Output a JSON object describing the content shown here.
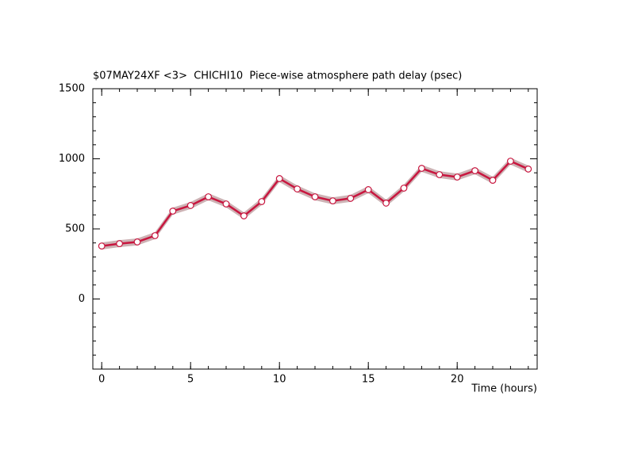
{
  "chart_data": {
    "type": "line",
    "title": "$07MAY24XF <3>  CHICHI10  Piece-wise atmosphere path delay (psec)",
    "x_label": "Time (hours)",
    "x": [
      0,
      1,
      2,
      3,
      4,
      5,
      6,
      7,
      8,
      9,
      10,
      11,
      12,
      13,
      14,
      15,
      16,
      17,
      18,
      19,
      20,
      21,
      22,
      23,
      24
    ],
    "series": [
      {
        "color": "#c8163f",
        "band_color": "#cdb3b5",
        "values": [
          378,
          395,
          407,
          452,
          627,
          667,
          729,
          678,
          593,
          695,
          859,
          785,
          729,
          700,
          718,
          780,
          684,
          791,
          932,
          887,
          870,
          915,
          847,
          983,
          927
        ],
        "errors": [
          25,
          25,
          25,
          25,
          25,
          25,
          25,
          25,
          25,
          25,
          25,
          25,
          25,
          25,
          25,
          25,
          25,
          25,
          25,
          25,
          25,
          25,
          25,
          25,
          25
        ]
      }
    ],
    "xlim": [
      -0.5,
      24.5
    ],
    "xticks": [
      0,
      5,
      10,
      15,
      20
    ],
    "xminorticks": [
      0,
      1,
      2,
      3,
      4,
      5,
      6,
      7,
      8,
      9,
      10,
      11,
      12,
      13,
      14,
      15,
      16,
      17,
      18,
      19,
      20,
      21,
      22,
      23,
      24
    ],
    "ylim": [
      -500,
      1500
    ],
    "yticks": [
      0,
      500,
      1000,
      1500
    ],
    "yminorticks": [
      -500,
      -400,
      -300,
      -200,
      -100,
      0,
      100,
      200,
      300,
      400,
      500,
      600,
      700,
      800,
      900,
      1000,
      1100,
      1200,
      1300,
      1400,
      1500
    ]
  }
}
